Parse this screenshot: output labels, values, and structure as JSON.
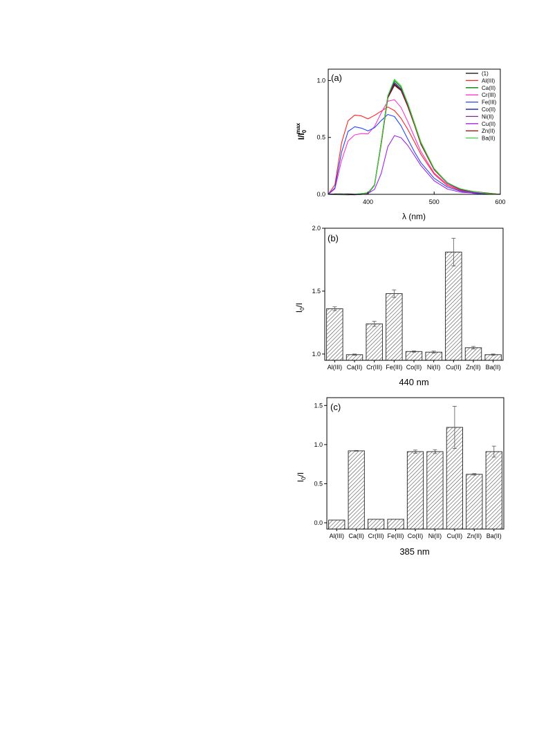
{
  "chart_data": [
    {
      "type": "line",
      "panel_label": "(a)",
      "xlabel": "λ (nm)",
      "ylabel_main": "I/I",
      "ylabel_sup": "max",
      "ylabel_sub": "0",
      "xlim": [
        340,
        600
      ],
      "ylim": [
        0,
        1.1
      ],
      "xticks": [
        400,
        500,
        600
      ],
      "yticks": [
        0.0,
        0.5,
        1.0
      ],
      "legend_position": "top-right",
      "series": [
        {
          "name": "(1)",
          "color": "#000000",
          "x": [
            340,
            350,
            360,
            370,
            380,
            390,
            400,
            410,
            420,
            430,
            440,
            450,
            460,
            470,
            480,
            500,
            520,
            540,
            560,
            580,
            600
          ],
          "y": [
            0,
            0,
            0,
            0,
            0,
            0.003,
            0.01,
            0.08,
            0.45,
            0.85,
            0.97,
            0.92,
            0.78,
            0.62,
            0.45,
            0.22,
            0.1,
            0.045,
            0.02,
            0.008,
            0
          ]
        },
        {
          "name": "Al(III)",
          "color": "#ff2020",
          "x": [
            340,
            350,
            360,
            370,
            380,
            390,
            400,
            410,
            420,
            430,
            440,
            450,
            460,
            470,
            480,
            500,
            520,
            540,
            560,
            580,
            600
          ],
          "y": [
            0,
            0.08,
            0.45,
            0.65,
            0.7,
            0.69,
            0.66,
            0.69,
            0.73,
            0.77,
            0.74,
            0.67,
            0.57,
            0.46,
            0.35,
            0.18,
            0.08,
            0.035,
            0.015,
            0.005,
            0
          ]
        },
        {
          "name": "Ca(II)",
          "color": "#008000",
          "x": [
            340,
            350,
            360,
            370,
            380,
            390,
            400,
            410,
            420,
            430,
            440,
            450,
            460,
            470,
            480,
            500,
            520,
            540,
            560,
            580,
            600
          ],
          "y": [
            0,
            0,
            0,
            0,
            0,
            0.003,
            0.01,
            0.08,
            0.46,
            0.87,
            1.0,
            0.94,
            0.8,
            0.63,
            0.46,
            0.23,
            0.1,
            0.045,
            0.02,
            0.008,
            0
          ]
        },
        {
          "name": "Cr(III)",
          "color": "#ff33cc",
          "x": [
            340,
            350,
            360,
            370,
            380,
            390,
            400,
            410,
            420,
            430,
            440,
            450,
            460,
            470,
            480,
            500,
            520,
            540,
            560,
            580,
            600
          ],
          "y": [
            0,
            0.05,
            0.3,
            0.47,
            0.52,
            0.53,
            0.53,
            0.6,
            0.72,
            0.82,
            0.83,
            0.76,
            0.64,
            0.51,
            0.38,
            0.19,
            0.085,
            0.035,
            0.015,
            0.005,
            0
          ]
        },
        {
          "name": "Fe(III)",
          "color": "#2244ff",
          "x": [
            340,
            350,
            360,
            370,
            380,
            390,
            400,
            410,
            420,
            430,
            440,
            450,
            460,
            470,
            480,
            500,
            520,
            540,
            560,
            580,
            600
          ],
          "y": [
            0,
            0.06,
            0.37,
            0.55,
            0.59,
            0.58,
            0.56,
            0.59,
            0.65,
            0.7,
            0.68,
            0.6,
            0.49,
            0.38,
            0.28,
            0.14,
            0.06,
            0.025,
            0.01,
            0.004,
            0
          ]
        },
        {
          "name": "Co(II)",
          "color": "#000099",
          "x": [
            340,
            350,
            360,
            370,
            380,
            390,
            400,
            410,
            420,
            430,
            440,
            450,
            460,
            470,
            480,
            500,
            520,
            540,
            560,
            580,
            600
          ],
          "y": [
            0,
            0,
            0,
            0,
            0,
            0.003,
            0.01,
            0.08,
            0.45,
            0.86,
            0.98,
            0.93,
            0.79,
            0.62,
            0.45,
            0.22,
            0.1,
            0.045,
            0.02,
            0.008,
            0
          ]
        },
        {
          "name": "Ni(II)",
          "color": "#7a2a8a",
          "x": [
            340,
            350,
            360,
            370,
            380,
            390,
            400,
            410,
            420,
            430,
            440,
            450,
            460,
            470,
            480,
            500,
            520,
            540,
            560,
            580,
            600
          ],
          "y": [
            0,
            0,
            0,
            0,
            0,
            0.003,
            0.01,
            0.08,
            0.45,
            0.86,
            0.98,
            0.93,
            0.79,
            0.62,
            0.45,
            0.22,
            0.1,
            0.045,
            0.02,
            0.008,
            0
          ]
        },
        {
          "name": "Cu(II)",
          "color": "#a020f0",
          "x": [
            340,
            350,
            360,
            370,
            380,
            390,
            400,
            410,
            420,
            430,
            440,
            450,
            460,
            470,
            480,
            500,
            520,
            540,
            560,
            580,
            600
          ],
          "y": [
            0,
            0,
            0,
            0,
            0,
            0.002,
            0.005,
            0.04,
            0.18,
            0.42,
            0.52,
            0.5,
            0.43,
            0.34,
            0.25,
            0.12,
            0.05,
            0.022,
            0.01,
            0.004,
            0
          ]
        },
        {
          "name": "Zn(II)",
          "color": "#8b1a1a",
          "x": [
            340,
            350,
            360,
            370,
            380,
            390,
            400,
            410,
            420,
            430,
            440,
            450,
            460,
            470,
            480,
            500,
            520,
            540,
            560,
            580,
            600
          ],
          "y": [
            0,
            0,
            0,
            0,
            0,
            0.003,
            0.01,
            0.08,
            0.44,
            0.85,
            0.96,
            0.91,
            0.77,
            0.61,
            0.44,
            0.22,
            0.1,
            0.045,
            0.02,
            0.008,
            0
          ]
        },
        {
          "name": "Ba(II)",
          "color": "#33dd33",
          "x": [
            340,
            350,
            360,
            370,
            380,
            390,
            400,
            410,
            420,
            430,
            440,
            450,
            460,
            470,
            480,
            500,
            520,
            540,
            560,
            580,
            600
          ],
          "y": [
            0,
            0,
            0,
            0,
            0,
            0.003,
            0.01,
            0.08,
            0.46,
            0.87,
            1.01,
            0.95,
            0.8,
            0.63,
            0.46,
            0.23,
            0.1,
            0.045,
            0.02,
            0.008,
            0
          ]
        }
      ]
    },
    {
      "type": "bar",
      "panel_label": "(b)",
      "ylabel_main": "I",
      "ylabel_sub": "0",
      "ylabel_tail": "/I",
      "xlabel": "440 nm",
      "ylim": [
        0.95,
        2.0
      ],
      "yticks": [
        1.0,
        1.5,
        2.0
      ],
      "categories": [
        "Al(III)",
        "Ca(II)",
        "Cr(III)",
        "Fe(III)",
        "Co(II)",
        "Ni(II)",
        "Cu(II)",
        "Zn(II)",
        "Ba(II)"
      ],
      "values": [
        1.36,
        0.995,
        1.24,
        1.48,
        1.02,
        1.015,
        1.81,
        1.05,
        0.995
      ],
      "errors": [
        0.015,
        0.005,
        0.02,
        0.03,
        0.005,
        0.008,
        0.11,
        0.01,
        0.005
      ]
    },
    {
      "type": "bar",
      "panel_label": "(c)",
      "ylabel_main": "I",
      "ylabel_sub": "0",
      "ylabel_tail": "/I",
      "xlabel": "385 nm",
      "ylim": [
        -0.08,
        1.6
      ],
      "yticks": [
        0.0,
        0.5,
        1.0,
        1.5
      ],
      "categories": [
        "Al(III)",
        "Ca(II)",
        "Cr(III)",
        "Fe(III)",
        "Co(II)",
        "Ni(II)",
        "Cu(II)",
        "Zn(II)",
        "Ba(II)"
      ],
      "values": [
        0.035,
        0.92,
        0.045,
        0.045,
        0.91,
        0.91,
        1.22,
        0.62,
        0.91
      ],
      "errors": [
        0.0,
        0.005,
        0.0,
        0.0,
        0.02,
        0.025,
        0.27,
        0.01,
        0.07
      ]
    }
  ]
}
